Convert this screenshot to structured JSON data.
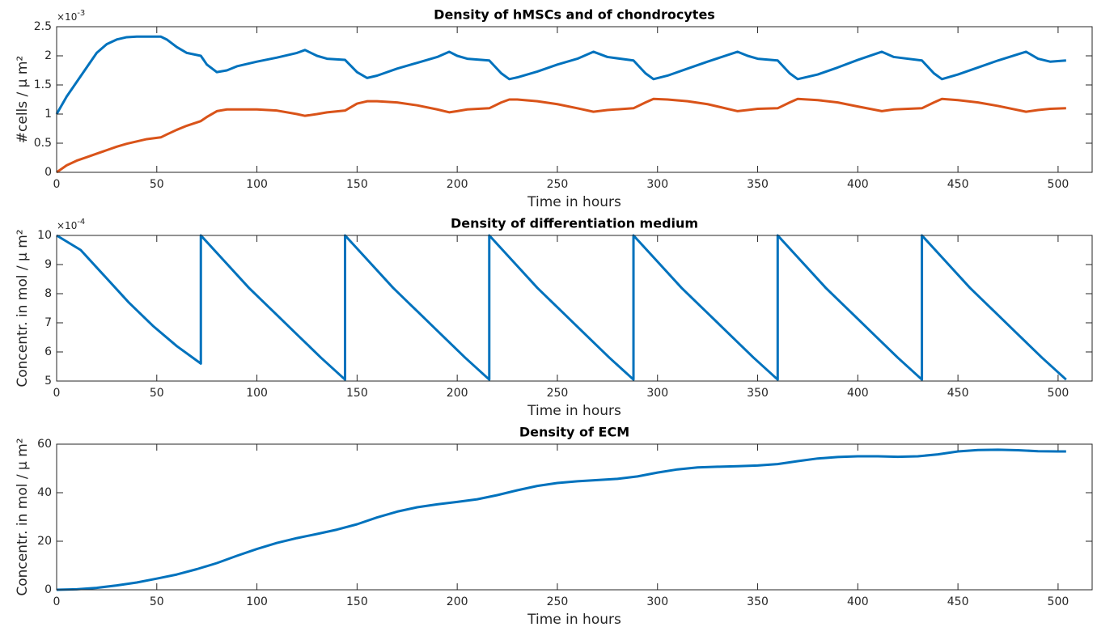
{
  "chart_data": [
    {
      "type": "line",
      "title": "Density of hMSCs and of chondrocytes",
      "xlabel": "Time in hours",
      "ylabel": "#cells / μ m²",
      "exponent_base": "×10",
      "exponent": "-3",
      "x": [
        0,
        5,
        10,
        15,
        20,
        25,
        30,
        35,
        40,
        45,
        52,
        55,
        60,
        65,
        72,
        75,
        80,
        85,
        90,
        100,
        110,
        120,
        124,
        130,
        135,
        144,
        150,
        155,
        160,
        170,
        180,
        190,
        196,
        200,
        205,
        216,
        222,
        226,
        230,
        240,
        250,
        260,
        268,
        275,
        288,
        294,
        298,
        305,
        315,
        325,
        340,
        345,
        350,
        360,
        366,
        370,
        380,
        390,
        400,
        412,
        418,
        432,
        438,
        442,
        450,
        460,
        470,
        484,
        490,
        496,
        504
      ],
      "series": [
        {
          "name": "hMSCs",
          "color": "#0072bd",
          "values": [
            1.0,
            1.3,
            1.55,
            1.8,
            2.05,
            2.2,
            2.28,
            2.32,
            2.33,
            2.33,
            2.33,
            2.28,
            2.15,
            2.05,
            2.0,
            1.85,
            1.72,
            1.75,
            1.82,
            1.9,
            1.97,
            2.05,
            2.1,
            2.0,
            1.95,
            1.93,
            1.72,
            1.62,
            1.66,
            1.78,
            1.88,
            1.98,
            2.07,
            2.0,
            1.95,
            1.92,
            1.7,
            1.6,
            1.63,
            1.73,
            1.85,
            1.95,
            2.07,
            1.98,
            1.92,
            1.7,
            1.6,
            1.66,
            1.78,
            1.9,
            2.07,
            2.0,
            1.95,
            1.92,
            1.7,
            1.6,
            1.68,
            1.8,
            1.93,
            2.07,
            1.98,
            1.92,
            1.7,
            1.6,
            1.68,
            1.8,
            1.92,
            2.07,
            1.95,
            1.9,
            1.92
          ]
        },
        {
          "name": "chondrocytes",
          "color": "#d95319",
          "values": [
            0,
            0.12,
            0.2,
            0.26,
            0.32,
            0.38,
            0.44,
            0.49,
            0.53,
            0.57,
            0.6,
            0.65,
            0.73,
            0.8,
            0.88,
            0.95,
            1.05,
            1.08,
            1.08,
            1.08,
            1.06,
            1.0,
            0.97,
            1.0,
            1.03,
            1.06,
            1.18,
            1.22,
            1.22,
            1.2,
            1.15,
            1.08,
            1.03,
            1.05,
            1.08,
            1.1,
            1.2,
            1.25,
            1.25,
            1.22,
            1.17,
            1.1,
            1.04,
            1.07,
            1.1,
            1.2,
            1.26,
            1.25,
            1.22,
            1.17,
            1.05,
            1.07,
            1.09,
            1.1,
            1.2,
            1.26,
            1.24,
            1.2,
            1.13,
            1.05,
            1.08,
            1.1,
            1.2,
            1.26,
            1.24,
            1.2,
            1.14,
            1.04,
            1.07,
            1.09,
            1.1
          ]
        }
      ],
      "xlim": [
        0,
        517
      ],
      "xticks": [
        0,
        50,
        100,
        150,
        200,
        250,
        300,
        350,
        400,
        450,
        500
      ],
      "ylim": [
        0,
        2.5
      ],
      "yticks": [
        0,
        0.5,
        1,
        1.5,
        2,
        2.5
      ],
      "grid": false
    },
    {
      "type": "line",
      "title": "Density of differentiation medium",
      "xlabel": "Time in hours",
      "ylabel": "Concentr. in mol / μ m²",
      "exponent_base": "×10",
      "exponent": "-4",
      "x": [
        0,
        12,
        24,
        36,
        48,
        60,
        72,
        72,
        84,
        96,
        108,
        120,
        132,
        144,
        144,
        156,
        168,
        180,
        192,
        204,
        216,
        216,
        228,
        240,
        252,
        264,
        276,
        288,
        288,
        300,
        312,
        324,
        336,
        348,
        360,
        360,
        372,
        384,
        396,
        408,
        420,
        432,
        432,
        444,
        456,
        468,
        480,
        492,
        504
      ],
      "series": [
        {
          "name": "medium",
          "color": "#0072bd",
          "values": [
            10,
            9.5,
            8.6,
            7.7,
            6.9,
            6.2,
            5.6,
            10,
            9.1,
            8.2,
            7.4,
            6.6,
            5.8,
            5.05,
            10,
            9.1,
            8.2,
            7.4,
            6.6,
            5.8,
            5.05,
            10,
            9.1,
            8.2,
            7.4,
            6.6,
            5.8,
            5.05,
            10,
            9.1,
            8.2,
            7.4,
            6.6,
            5.8,
            5.05,
            10,
            9.1,
            8.2,
            7.4,
            6.6,
            5.8,
            5.05,
            10,
            9.1,
            8.2,
            7.4,
            6.6,
            5.8,
            5.05
          ]
        }
      ],
      "xlim": [
        0,
        517
      ],
      "xticks": [
        0,
        50,
        100,
        150,
        200,
        250,
        300,
        350,
        400,
        450,
        500
      ],
      "ylim": [
        5,
        10
      ],
      "yticks": [
        5,
        6,
        7,
        8,
        9,
        10
      ],
      "grid": false
    },
    {
      "type": "line",
      "title": "Density of ECM",
      "xlabel": "Time in hours",
      "ylabel": "Concentr. in mol / μ m²",
      "x": [
        0,
        10,
        20,
        30,
        40,
        50,
        60,
        70,
        80,
        90,
        100,
        110,
        120,
        130,
        140,
        150,
        160,
        170,
        180,
        190,
        200,
        210,
        220,
        230,
        240,
        250,
        260,
        270,
        280,
        290,
        300,
        310,
        320,
        330,
        340,
        350,
        360,
        370,
        380,
        390,
        400,
        410,
        420,
        430,
        440,
        450,
        460,
        470,
        480,
        490,
        500,
        504
      ],
      "series": [
        {
          "name": "ECM",
          "color": "#0072bd",
          "values": [
            0,
            0.2,
            0.8,
            1.8,
            3,
            4.6,
            6.3,
            8.5,
            11,
            14,
            16.8,
            19.3,
            21.3,
            23,
            24.8,
            27,
            29.8,
            32.2,
            34,
            35.2,
            36.2,
            37.3,
            39,
            41,
            42.8,
            44,
            44.7,
            45.2,
            45.7,
            46.7,
            48.3,
            49.6,
            50.4,
            50.7,
            50.9,
            51.2,
            51.8,
            53,
            54.1,
            54.7,
            55,
            55,
            54.8,
            55,
            55.8,
            57,
            57.6,
            57.7,
            57.5,
            57.1,
            57,
            57
          ]
        }
      ],
      "xlim": [
        0,
        517
      ],
      "xticks": [
        0,
        50,
        100,
        150,
        200,
        250,
        300,
        350,
        400,
        450,
        500
      ],
      "ylim": [
        0,
        60
      ],
      "yticks": [
        0,
        20,
        40,
        60
      ],
      "grid": false
    }
  ]
}
